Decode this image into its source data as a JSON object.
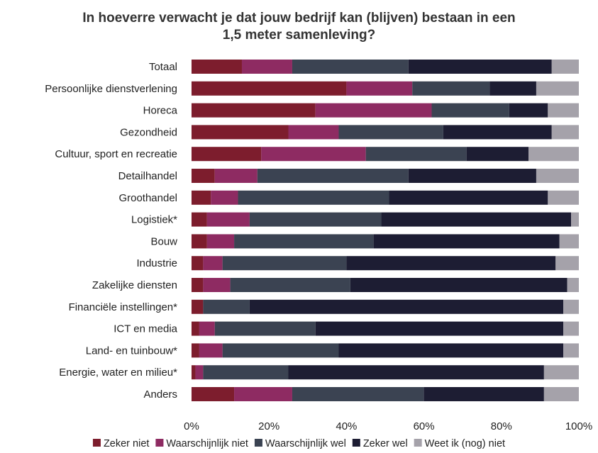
{
  "chart_data": {
    "type": "bar",
    "orientation": "horizontal",
    "stacked": true,
    "percent": true,
    "title_lines": [
      "In hoeverre verwacht je dat jouw bedrijf kan (blijven) bestaan in een",
      "1,5 meter samenleving?"
    ],
    "categories": [
      "Totaal",
      "Persoonlijke dienstverlening",
      "Horeca",
      "Gezondheid",
      "Cultuur, sport en recreatie",
      "Detailhandel",
      "Groothandel",
      "Logistiek*",
      "Bouw",
      "Industrie",
      "Zakelijke diensten",
      "Financiële instellingen*",
      "ICT en media",
      "Land- en tuinbouw*",
      "Energie, water en milieu*",
      "Anders"
    ],
    "series": [
      {
        "name": "Zeker niet",
        "color": "#7d1d2d",
        "values": [
          13,
          40,
          32,
          25,
          18,
          6,
          5,
          4,
          4,
          3,
          3,
          3,
          2,
          2,
          1,
          11
        ]
      },
      {
        "name": "Waarschijnlijk niet",
        "color": "#8e2b62",
        "values": [
          13,
          17,
          30,
          13,
          27,
          11,
          7,
          11,
          7,
          5,
          7,
          0,
          4,
          6,
          2,
          15
        ]
      },
      {
        "name": "Waarschijnlijk wel",
        "color": "#3b4352",
        "values": [
          30,
          20,
          20,
          27,
          26,
          39,
          39,
          34,
          36,
          32,
          31,
          12,
          26,
          30,
          22,
          34
        ]
      },
      {
        "name": "Zeker wel",
        "color": "#1d1d33",
        "values": [
          37,
          12,
          10,
          28,
          16,
          33,
          41,
          49,
          48,
          54,
          56,
          81,
          64,
          58,
          66,
          31
        ]
      },
      {
        "name": "Weet ik (nog) niet",
        "color": "#a5a2aa",
        "values": [
          7,
          11,
          8,
          7,
          13,
          11,
          8,
          2,
          5,
          6,
          3,
          4,
          4,
          4,
          9,
          9
        ]
      }
    ],
    "xlim": [
      0,
      100
    ],
    "xticks": [
      "0%",
      "20%",
      "40%",
      "60%",
      "80%",
      "100%"
    ],
    "legend_position": "bottom",
    "grid": false
  }
}
